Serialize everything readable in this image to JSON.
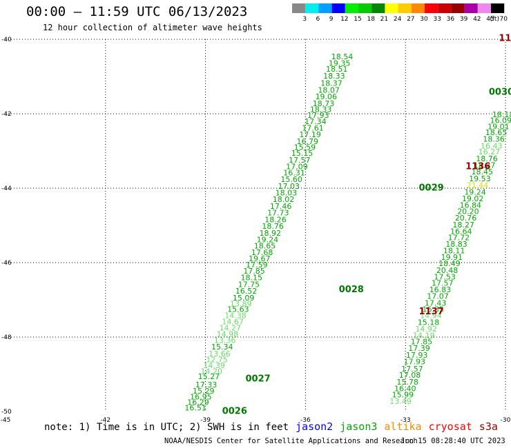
{
  "header": {
    "title": "00:00 — 11:59 UTC 06/13/2023",
    "subtitle": "12 hour collection of altimeter wave heights"
  },
  "legend": {
    "unit": "(ft)",
    "bins": [
      {
        "label": "3",
        "color": "#888888"
      },
      {
        "label": "6",
        "color": "#00eeee"
      },
      {
        "label": "9",
        "color": "#00a0ff"
      },
      {
        "label": "12",
        "color": "#0000ff"
      },
      {
        "label": "15",
        "color": "#00ee00"
      },
      {
        "label": "18",
        "color": "#00cc00"
      },
      {
        "label": "21",
        "color": "#008800"
      },
      {
        "label": "24",
        "color": "#ffff00"
      },
      {
        "label": "27",
        "color": "#ffcc00"
      },
      {
        "label": "30",
        "color": "#ff8800"
      },
      {
        "label": "33",
        "color": "#ff0000"
      },
      {
        "label": "36",
        "color": "#cc0000"
      },
      {
        "label": "39",
        "color": "#990000"
      },
      {
        "label": "42",
        "color": "#aa00aa"
      },
      {
        "label": "45",
        "color": "#ee88ee"
      },
      {
        "label": "70",
        "color": "#000000"
      }
    ]
  },
  "footer": {
    "note": "note: 1) Time is in UTC; 2) SWH is in feet",
    "satellites": [
      {
        "name": "jason2",
        "color": "#0000ff"
      },
      {
        "name": "jason3",
        "color": "#00aa00"
      },
      {
        "name": "altika",
        "color": "#ff8800"
      },
      {
        "name": "cryosat",
        "color": "#ff0000"
      },
      {
        "name": "s3a",
        "color": "#990000"
      }
    ],
    "credit": "NOAA/NESDIS Center for Satellite Applications and Research",
    "timestamp": "Jun 15 08:28:40 UTC 2023"
  },
  "colors": {
    "light": "#66dd66",
    "mid": "#00aa00",
    "dark": "#007700",
    "yellow": "#dddd00",
    "maroon": "#990000"
  },
  "chart_data": {
    "type": "scatter",
    "x_axis": {
      "range": [
        -45,
        -30
      ],
      "ticks": [
        "-45",
        "-42",
        "-39",
        "-36",
        "-33",
        "-30"
      ]
    },
    "y_axis": {
      "range": [
        -50,
        -40
      ],
      "ticks": [
        "-40",
        "-42",
        "-44",
        "-46",
        "-48",
        "-50"
      ]
    },
    "grid": true,
    "pass_labels": [
      {
        "text": "0026",
        "lon": -38.5,
        "lat": -49.97,
        "tone": "dark"
      },
      {
        "text": "0027",
        "lon": -37.8,
        "lat": -49.1,
        "tone": "dark"
      },
      {
        "text": "0028",
        "lon": -35.0,
        "lat": -46.7,
        "tone": "dark"
      },
      {
        "text": "0029",
        "lon": -32.6,
        "lat": -43.97,
        "tone": "dark"
      },
      {
        "text": "0030",
        "lon": -30.5,
        "lat": -41.4,
        "tone": "dark"
      },
      {
        "text": "1136",
        "lon": -31.2,
        "lat": -43.4,
        "tone": "maroon"
      },
      {
        "text": "1137",
        "lon": -32.6,
        "lat": -47.3,
        "tone": "maroon"
      },
      {
        "text": "11",
        "lon": -30.2,
        "lat": -39.95,
        "tone": "maroon"
      }
    ],
    "series": [
      {
        "name": "0026-0030",
        "points": [
          {
            "lon": -39.3,
            "lat": -49.9,
            "swh": "16.51",
            "tone": "mid"
          },
          {
            "lon": -39.22,
            "lat": -49.75,
            "swh": "16.29",
            "tone": "mid"
          },
          {
            "lon": -39.14,
            "lat": -49.6,
            "swh": "16.95",
            "tone": "mid"
          },
          {
            "lon": -39.06,
            "lat": -49.44,
            "swh": "15.29",
            "tone": "mid"
          },
          {
            "lon": -38.98,
            "lat": -49.28,
            "swh": "17.33",
            "tone": "mid"
          },
          {
            "lon": -38.9,
            "lat": -49.06,
            "swh": "15.27",
            "tone": "mid"
          },
          {
            "lon": -38.82,
            "lat": -48.92,
            "swh": "14.20",
            "tone": "light"
          },
          {
            "lon": -38.74,
            "lat": -48.76,
            "swh": "14.39",
            "tone": "light"
          },
          {
            "lon": -38.66,
            "lat": -48.6,
            "swh": "12.75",
            "tone": "light"
          },
          {
            "lon": -38.58,
            "lat": -48.44,
            "swh": "13.66",
            "tone": "light"
          },
          {
            "lon": -38.5,
            "lat": -48.26,
            "swh": "15.34",
            "tone": "mid"
          },
          {
            "lon": -38.42,
            "lat": -48.08,
            "swh": "13.36",
            "tone": "light"
          },
          {
            "lon": -38.34,
            "lat": -47.92,
            "swh": "14.98",
            "tone": "light"
          },
          {
            "lon": -38.26,
            "lat": -47.75,
            "swh": "14.27",
            "tone": "light"
          },
          {
            "lon": -38.18,
            "lat": -47.58,
            "swh": "14.67",
            "tone": "light"
          },
          {
            "lon": -38.1,
            "lat": -47.42,
            "swh": "14.38",
            "tone": "light"
          },
          {
            "lon": -38.02,
            "lat": -47.25,
            "swh": "15.63",
            "tone": "mid"
          },
          {
            "lon": -37.94,
            "lat": -47.1,
            "swh": "13.89",
            "tone": "light"
          },
          {
            "lon": -37.86,
            "lat": -46.94,
            "swh": "15.09",
            "tone": "mid"
          },
          {
            "lon": -37.78,
            "lat": -46.76,
            "swh": "16.52",
            "tone": "mid"
          },
          {
            "lon": -37.7,
            "lat": -46.58,
            "swh": "17.75",
            "tone": "mid"
          },
          {
            "lon": -37.62,
            "lat": -46.4,
            "swh": "18.15",
            "tone": "mid"
          },
          {
            "lon": -37.54,
            "lat": -46.22,
            "swh": "17.85",
            "tone": "mid"
          },
          {
            "lon": -37.46,
            "lat": -46.06,
            "swh": "17.59",
            "tone": "mid"
          },
          {
            "lon": -37.38,
            "lat": -45.89,
            "swh": "19.67",
            "tone": "mid"
          },
          {
            "lon": -37.3,
            "lat": -45.72,
            "swh": "17.68",
            "tone": "mid"
          },
          {
            "lon": -37.22,
            "lat": -45.55,
            "swh": "18.65",
            "tone": "mid"
          },
          {
            "lon": -37.14,
            "lat": -45.38,
            "swh": "19.24",
            "tone": "mid"
          },
          {
            "lon": -37.06,
            "lat": -45.2,
            "swh": "18.92",
            "tone": "mid"
          },
          {
            "lon": -36.98,
            "lat": -45.02,
            "swh": "18.76",
            "tone": "mid"
          },
          {
            "lon": -36.9,
            "lat": -44.84,
            "swh": "18.26",
            "tone": "mid"
          },
          {
            "lon": -36.82,
            "lat": -44.66,
            "swh": "17.73",
            "tone": "mid"
          },
          {
            "lon": -36.74,
            "lat": -44.48,
            "swh": "17.46",
            "tone": "mid"
          },
          {
            "lon": -36.66,
            "lat": -44.3,
            "swh": "18.02",
            "tone": "mid"
          },
          {
            "lon": -36.58,
            "lat": -44.12,
            "swh": "18.03",
            "tone": "mid"
          },
          {
            "lon": -36.5,
            "lat": -43.94,
            "swh": "17.03",
            "tone": "mid"
          },
          {
            "lon": -36.42,
            "lat": -43.76,
            "swh": "15.60",
            "tone": "mid"
          },
          {
            "lon": -36.34,
            "lat": -43.58,
            "swh": "16.31",
            "tone": "mid"
          },
          {
            "lon": -36.26,
            "lat": -43.42,
            "swh": "17.09",
            "tone": "mid"
          },
          {
            "lon": -36.18,
            "lat": -43.24,
            "swh": "17.57",
            "tone": "mid"
          },
          {
            "lon": -36.1,
            "lat": -43.06,
            "swh": "15.15",
            "tone": "mid"
          },
          {
            "lon": -36.02,
            "lat": -42.9,
            "swh": "15.59",
            "tone": "mid"
          },
          {
            "lon": -35.94,
            "lat": -42.74,
            "swh": "16.79",
            "tone": "mid"
          },
          {
            "lon": -35.86,
            "lat": -42.56,
            "swh": "17.19",
            "tone": "mid"
          },
          {
            "lon": -35.78,
            "lat": -42.38,
            "swh": "17.61",
            "tone": "mid"
          },
          {
            "lon": -35.7,
            "lat": -42.2,
            "swh": "17.34",
            "tone": "mid"
          },
          {
            "lon": -35.62,
            "lat": -42.04,
            "swh": "17.93",
            "tone": "mid"
          },
          {
            "lon": -35.54,
            "lat": -41.88,
            "swh": "18.33",
            "tone": "mid"
          },
          {
            "lon": -35.46,
            "lat": -41.72,
            "swh": "18.73",
            "tone": "mid"
          },
          {
            "lon": -35.38,
            "lat": -41.54,
            "swh": "19.06",
            "tone": "mid"
          },
          {
            "lon": -35.3,
            "lat": -41.36,
            "swh": "18.07",
            "tone": "mid"
          },
          {
            "lon": -35.22,
            "lat": -41.18,
            "swh": "18.37",
            "tone": "mid"
          },
          {
            "lon": -35.14,
            "lat": -40.98,
            "swh": "18.33",
            "tone": "mid"
          },
          {
            "lon": -35.06,
            "lat": -40.8,
            "swh": "18.51",
            "tone": "mid"
          },
          {
            "lon": -34.98,
            "lat": -40.64,
            "swh": "19.35",
            "tone": "mid"
          },
          {
            "lon": -34.9,
            "lat": -40.46,
            "swh": "18.54",
            "tone": "mid"
          }
        ]
      },
      {
        "name": "1136-1137",
        "points": [
          {
            "lon": -33.15,
            "lat": -49.72,
            "swh": "13.49",
            "tone": "light"
          },
          {
            "lon": -33.08,
            "lat": -49.55,
            "swh": "15.99",
            "tone": "mid"
          },
          {
            "lon": -33.01,
            "lat": -49.38,
            "swh": "16.40",
            "tone": "mid"
          },
          {
            "lon": -32.94,
            "lat": -49.2,
            "swh": "15.78",
            "tone": "mid"
          },
          {
            "lon": -32.87,
            "lat": -49.02,
            "swh": "17.08",
            "tone": "mid"
          },
          {
            "lon": -32.8,
            "lat": -48.85,
            "swh": "17.57",
            "tone": "mid"
          },
          {
            "lon": -32.73,
            "lat": -48.66,
            "swh": "17.93",
            "tone": "mid"
          },
          {
            "lon": -32.66,
            "lat": -48.48,
            "swh": "17.93",
            "tone": "mid"
          },
          {
            "lon": -32.59,
            "lat": -48.3,
            "swh": "17.39",
            "tone": "mid"
          },
          {
            "lon": -32.52,
            "lat": -48.12,
            "swh": "17.85",
            "tone": "mid"
          },
          {
            "lon": -32.45,
            "lat": -47.95,
            "swh": "14.19",
            "tone": "light"
          },
          {
            "lon": -32.38,
            "lat": -47.78,
            "swh": "14.92",
            "tone": "light"
          },
          {
            "lon": -32.31,
            "lat": -47.6,
            "swh": "15.18",
            "tone": "mid"
          },
          {
            "lon": -32.24,
            "lat": -47.42,
            "swh": "14.94",
            "tone": "light"
          },
          {
            "lon": -32.17,
            "lat": -47.25,
            "swh": "16.35",
            "tone": "mid"
          },
          {
            "lon": -32.1,
            "lat": -47.08,
            "swh": "17.43",
            "tone": "mid"
          },
          {
            "lon": -32.03,
            "lat": -46.9,
            "swh": "17.07",
            "tone": "mid"
          },
          {
            "lon": -31.96,
            "lat": -46.72,
            "swh": "16.83",
            "tone": "mid"
          },
          {
            "lon": -31.89,
            "lat": -46.55,
            "swh": "17.57",
            "tone": "mid"
          },
          {
            "lon": -31.82,
            "lat": -46.38,
            "swh": "17.53",
            "tone": "mid"
          },
          {
            "lon": -31.75,
            "lat": -46.2,
            "swh": "20.48",
            "tone": "mid"
          },
          {
            "lon": -31.68,
            "lat": -46.02,
            "swh": "18.49",
            "tone": "mid"
          },
          {
            "lon": -31.61,
            "lat": -45.85,
            "swh": "19.91",
            "tone": "mid"
          },
          {
            "lon": -31.54,
            "lat": -45.68,
            "swh": "18.11",
            "tone": "mid"
          },
          {
            "lon": -31.47,
            "lat": -45.5,
            "swh": "18.83",
            "tone": "mid"
          },
          {
            "lon": -31.4,
            "lat": -45.32,
            "swh": "17.72",
            "tone": "mid"
          },
          {
            "lon": -31.33,
            "lat": -45.16,
            "swh": "16.64",
            "tone": "mid"
          },
          {
            "lon": -31.26,
            "lat": -44.98,
            "swh": "18.27",
            "tone": "mid"
          },
          {
            "lon": -31.19,
            "lat": -44.8,
            "swh": "20.76",
            "tone": "mid"
          },
          {
            "lon": -31.12,
            "lat": -44.62,
            "swh": "20.20",
            "tone": "mid"
          },
          {
            "lon": -31.05,
            "lat": -44.45,
            "swh": "16.84",
            "tone": "mid"
          },
          {
            "lon": -30.98,
            "lat": -44.28,
            "swh": "19.02",
            "tone": "mid"
          },
          {
            "lon": -30.91,
            "lat": -44.1,
            "swh": "19.24",
            "tone": "mid"
          },
          {
            "lon": -30.84,
            "lat": -43.92,
            "swh": "21.44",
            "tone": "yellow"
          },
          {
            "lon": -30.77,
            "lat": -43.74,
            "swh": "19.53",
            "tone": "mid"
          },
          {
            "lon": -30.7,
            "lat": -43.56,
            "swh": "18.45",
            "tone": "mid"
          },
          {
            "lon": -30.63,
            "lat": -43.38,
            "swh": "18.27",
            "tone": "mid"
          },
          {
            "lon": -30.56,
            "lat": -43.2,
            "swh": "18.76",
            "tone": "mid"
          },
          {
            "lon": -30.49,
            "lat": -43.02,
            "swh": "16.27",
            "tone": "light"
          },
          {
            "lon": -30.42,
            "lat": -42.86,
            "swh": "16.43",
            "tone": "light"
          },
          {
            "lon": -30.35,
            "lat": -42.68,
            "swh": "18.36",
            "tone": "mid"
          },
          {
            "lon": -30.28,
            "lat": -42.5,
            "swh": "18.65",
            "tone": "mid"
          },
          {
            "lon": -30.21,
            "lat": -42.34,
            "swh": "19.01",
            "tone": "mid"
          },
          {
            "lon": -30.14,
            "lat": -42.18,
            "swh": "16.09",
            "tone": "mid"
          },
          {
            "lon": -30.07,
            "lat": -42.02,
            "swh": "18.18",
            "tone": "mid"
          }
        ]
      }
    ]
  }
}
